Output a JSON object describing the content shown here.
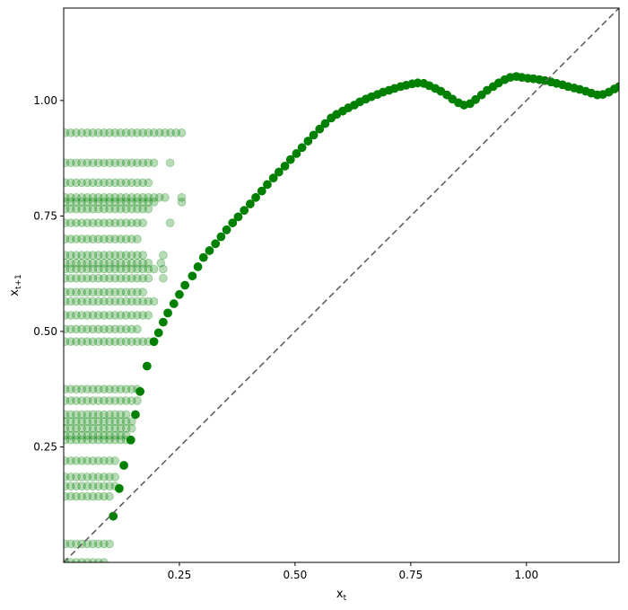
{
  "chart_data": {
    "type": "scatter",
    "title": "",
    "xlabel": "x",
    "xlabel_sub": "t",
    "ylabel": "x",
    "ylabel_sub": "t+1",
    "xlim": [
      0.0,
      1.2
    ],
    "ylim": [
      0.0,
      1.2
    ],
    "xticks": [
      0.25,
      0.5,
      0.75,
      1.0
    ],
    "yticks": [
      0.25,
      0.5,
      0.75,
      1.0
    ],
    "xtick_labels": [
      "0.25",
      "0.50",
      "0.75",
      "1.00"
    ],
    "ytick_labels": [
      "0.25",
      "0.50",
      "0.75",
      "1.00"
    ],
    "grid": false,
    "legend": "none",
    "colors": {
      "points": "#008000",
      "identity_line": "#606060"
    },
    "identity_line": {
      "from": [
        0.0,
        0.0
      ],
      "to": [
        1.2,
        1.2
      ],
      "style": "dashed"
    },
    "series": [
      {
        "role": "faded-cloud",
        "opacity": 0.28,
        "rows": [
          {
            "y": 0.93,
            "x_max": 0.25,
            "extra_x": [
              0.255
            ]
          },
          {
            "y": 0.865,
            "x_max": 0.2,
            "extra_x": [
              0.23
            ]
          },
          {
            "y": 0.822,
            "x_max": 0.19,
            "extra_x": []
          },
          {
            "y": 0.79,
            "x_max": 0.23,
            "extra_x": [
              0.255
            ]
          },
          {
            "y": 0.78,
            "x_max": 0.2,
            "extra_x": [
              0.255
            ]
          },
          {
            "y": 0.765,
            "x_max": 0.19,
            "extra_x": []
          },
          {
            "y": 0.735,
            "x_max": 0.18,
            "extra_x": [
              0.23
            ]
          },
          {
            "y": 0.7,
            "x_max": 0.17,
            "extra_x": []
          },
          {
            "y": 0.665,
            "x_max": 0.18,
            "extra_x": [
              0.215
            ]
          },
          {
            "y": 0.648,
            "x_max": 0.19,
            "extra_x": [
              0.21
            ]
          },
          {
            "y": 0.635,
            "x_max": 0.2,
            "extra_x": [
              0.215
            ]
          },
          {
            "y": 0.615,
            "x_max": 0.19,
            "extra_x": [
              0.215
            ]
          },
          {
            "y": 0.585,
            "x_max": 0.18,
            "extra_x": []
          },
          {
            "y": 0.565,
            "x_max": 0.2,
            "extra_x": []
          },
          {
            "y": 0.535,
            "x_max": 0.19,
            "extra_x": []
          },
          {
            "y": 0.505,
            "x_max": 0.16,
            "extra_x": []
          },
          {
            "y": 0.478,
            "x_max": 0.19,
            "extra_x": []
          },
          {
            "y": 0.375,
            "x_max": 0.17,
            "extra_x": []
          },
          {
            "y": 0.35,
            "x_max": 0.16,
            "extra_x": []
          },
          {
            "y": 0.32,
            "x_max": 0.14,
            "extra_x": []
          },
          {
            "y": 0.305,
            "x_max": 0.15,
            "extra_x": []
          },
          {
            "y": 0.29,
            "x_max": 0.15,
            "extra_x": []
          },
          {
            "y": 0.275,
            "x_max": 0.14,
            "extra_x": []
          },
          {
            "y": 0.265,
            "x_max": 0.14,
            "extra_x": []
          },
          {
            "y": 0.22,
            "x_max": 0.12,
            "extra_x": []
          },
          {
            "y": 0.185,
            "x_max": 0.12,
            "extra_x": []
          },
          {
            "y": 0.165,
            "x_max": 0.12,
            "extra_x": []
          },
          {
            "y": 0.143,
            "x_max": 0.11,
            "extra_x": []
          },
          {
            "y": 0.04,
            "x_max": 0.1,
            "extra_x": []
          },
          {
            "y": 0.0,
            "x_max": 0.09,
            "extra_x": []
          }
        ],
        "row_step": 0.012,
        "row_start": 0.003
      },
      {
        "role": "map-curve",
        "opacity": 1.0,
        "points": [
          [
            0.107,
            0.1
          ],
          [
            0.12,
            0.16
          ],
          [
            0.13,
            0.21
          ],
          [
            0.145,
            0.265
          ],
          [
            0.155,
            0.32
          ],
          [
            0.165,
            0.37
          ],
          [
            0.18,
            0.425
          ],
          [
            0.195,
            0.478
          ],
          [
            0.205,
            0.497
          ],
          [
            0.215,
            0.52
          ],
          [
            0.225,
            0.54
          ],
          [
            0.238,
            0.56
          ],
          [
            0.25,
            0.58
          ],
          [
            0.262,
            0.6
          ],
          [
            0.278,
            0.62
          ],
          [
            0.29,
            0.64
          ],
          [
            0.302,
            0.66
          ],
          [
            0.315,
            0.675
          ],
          [
            0.328,
            0.69
          ],
          [
            0.34,
            0.705
          ],
          [
            0.352,
            0.72
          ],
          [
            0.365,
            0.735
          ],
          [
            0.377,
            0.748
          ],
          [
            0.39,
            0.762
          ],
          [
            0.403,
            0.776
          ],
          [
            0.415,
            0.79
          ],
          [
            0.428,
            0.804
          ],
          [
            0.44,
            0.818
          ],
          [
            0.453,
            0.832
          ],
          [
            0.465,
            0.845
          ],
          [
            0.478,
            0.858
          ],
          [
            0.49,
            0.872
          ],
          [
            0.503,
            0.885
          ],
          [
            0.515,
            0.898
          ],
          [
            0.528,
            0.912
          ],
          [
            0.54,
            0.925
          ],
          [
            0.553,
            0.938
          ],
          [
            0.565,
            0.95
          ],
          [
            0.578,
            0.962
          ],
          [
            0.59,
            0.97
          ],
          [
            0.603,
            0.977
          ],
          [
            0.615,
            0.984
          ],
          [
            0.628,
            0.99
          ],
          [
            0.64,
            0.997
          ],
          [
            0.653,
            1.003
          ],
          [
            0.665,
            1.008
          ],
          [
            0.678,
            1.013
          ],
          [
            0.69,
            1.018
          ],
          [
            0.703,
            1.022
          ],
          [
            0.715,
            1.026
          ],
          [
            0.728,
            1.03
          ],
          [
            0.74,
            1.033
          ],
          [
            0.753,
            1.036
          ],
          [
            0.765,
            1.038
          ],
          [
            0.778,
            1.037
          ],
          [
            0.79,
            1.032
          ],
          [
            0.803,
            1.026
          ],
          [
            0.815,
            1.02
          ],
          [
            0.828,
            1.012
          ],
          [
            0.84,
            1.003
          ],
          [
            0.853,
            0.995
          ],
          [
            0.865,
            0.99
          ],
          [
            0.878,
            0.993
          ],
          [
            0.89,
            1.002
          ],
          [
            0.903,
            1.012
          ],
          [
            0.915,
            1.022
          ],
          [
            0.928,
            1.03
          ],
          [
            0.94,
            1.038
          ],
          [
            0.953,
            1.045
          ],
          [
            0.965,
            1.05
          ],
          [
            0.978,
            1.052
          ],
          [
            0.99,
            1.05
          ],
          [
            1.003,
            1.048
          ],
          [
            1.015,
            1.047
          ],
          [
            1.028,
            1.045
          ],
          [
            1.04,
            1.043
          ],
          [
            1.053,
            1.04
          ],
          [
            1.065,
            1.037
          ],
          [
            1.078,
            1.034
          ],
          [
            1.09,
            1.03
          ],
          [
            1.103,
            1.027
          ],
          [
            1.115,
            1.024
          ],
          [
            1.128,
            1.02
          ],
          [
            1.14,
            1.016
          ],
          [
            1.153,
            1.012
          ],
          [
            1.165,
            1.013
          ],
          [
            1.178,
            1.018
          ],
          [
            1.19,
            1.025
          ],
          [
            1.2,
            1.03
          ]
        ]
      }
    ]
  }
}
